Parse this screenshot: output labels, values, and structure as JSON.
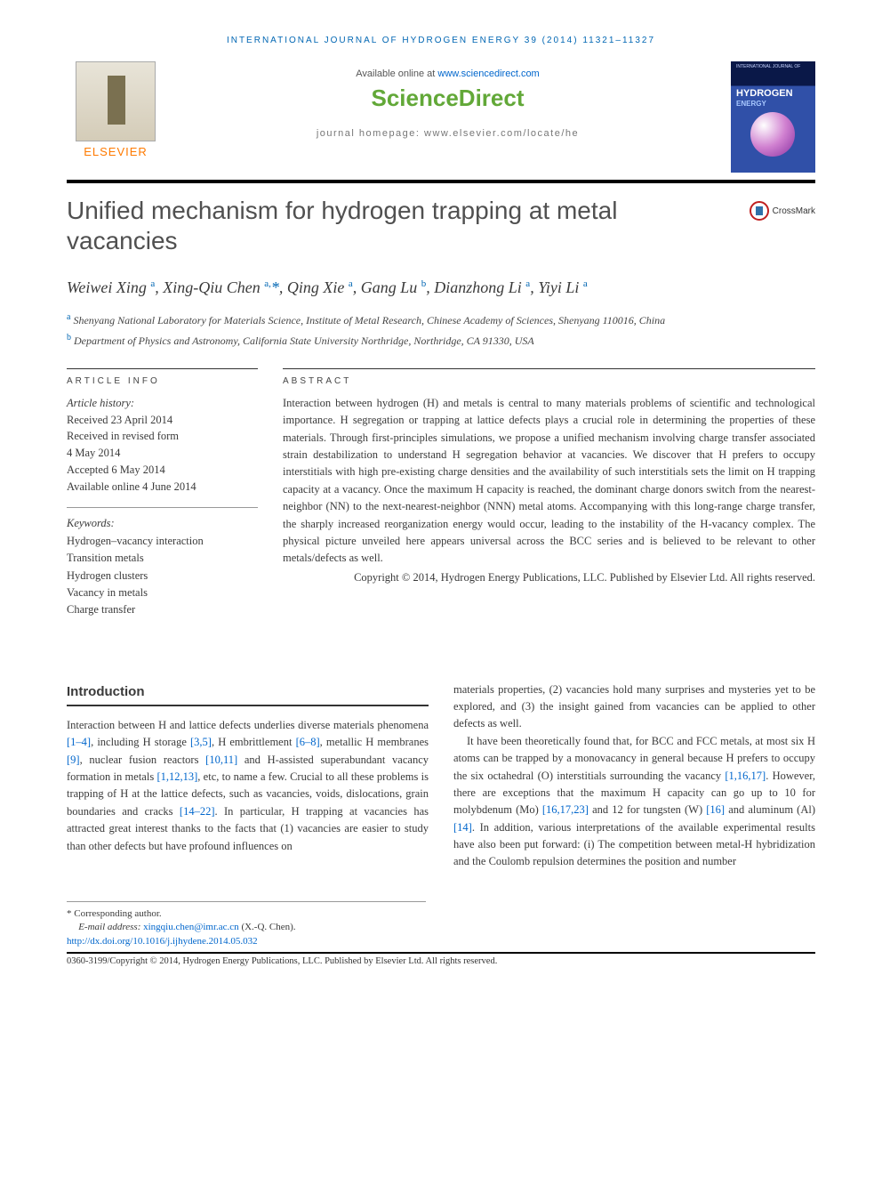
{
  "journal_header": "INTERNATIONAL JOURNAL OF HYDROGEN ENERGY 39 (2014) 11321–11327",
  "available_text": "Available online at ",
  "available_link": "www.sciencedirect.com",
  "scidirect": "ScienceDirect",
  "journal_homepage": "journal homepage: www.elsevier.com/locate/he",
  "elsevier": "ELSEVIER",
  "cover": {
    "top": "INTERNATIONAL JOURNAL OF",
    "title": "HYDROGEN",
    "sub": "ENERGY"
  },
  "crossmark": "CrossMark",
  "title": "Unified mechanism for hydrogen trapping at metal vacancies",
  "authors_html": "Weiwei Xing <sup>a</sup>, Xing-Qiu Chen <sup>a,</sup><span class='corr'>*</span>, Qing Xie <sup>a</sup>, Gang Lu <sup>b</sup>, Dianzhong Li <sup>a</sup>, Yiyi Li <sup>a</sup>",
  "affil_a": "Shenyang National Laboratory for Materials Science, Institute of Metal Research, Chinese Academy of Sciences, Shenyang 110016, China",
  "affil_b": "Department of Physics and Astronomy, California State University Northridge, Northridge, CA 91330, USA",
  "article_info_label": "ARTICLE INFO",
  "abstract_label": "ABSTRACT",
  "history": {
    "label": "Article history:",
    "received": "Received 23 April 2014",
    "revised1": "Received in revised form",
    "revised2": "4 May 2014",
    "accepted": "Accepted 6 May 2014",
    "online": "Available online 4 June 2014"
  },
  "kw_label": "Keywords:",
  "keywords": [
    "Hydrogen–vacancy interaction",
    "Transition metals",
    "Hydrogen clusters",
    "Vacancy in metals",
    "Charge transfer"
  ],
  "abstract": "Interaction between hydrogen (H) and metals is central to many materials problems of scientific and technological importance. H segregation or trapping at lattice defects plays a crucial role in determining the properties of these materials. Through first-principles simulations, we propose a unified mechanism involving charge transfer associated strain destabilization to understand H segregation behavior at vacancies. We discover that H prefers to occupy interstitials with high pre-existing charge densities and the availability of such interstitials sets the limit on H trapping capacity at a vacancy. Once the maximum H capacity is reached, the dominant charge donors switch from the nearest-neighbor (NN) to the next-nearest-neighbor (NNN) metal atoms. Accompanying with this long-range charge transfer, the sharply increased reorganization energy would occur, leading to the instability of the H-vacancy complex. The physical picture unveiled here appears universal across the BCC series and is believed to be relevant to other metals/defects as well.",
  "copyright": "Copyright © 2014, Hydrogen Energy Publications, LLC. Published by Elsevier Ltd. All rights reserved.",
  "intro_head": "Introduction",
  "intro_p1_pre": "Interaction between H and lattice defects underlies diverse materials phenomena ",
  "r1": "[1–4]",
  "intro_p1_a": ", including H storage ",
  "r2": "[3,5]",
  "intro_p1_b": ", H embrittlement ",
  "r3": "[6–8]",
  "intro_p1_c": ", metallic H membranes ",
  "r4": "[9]",
  "intro_p1_d": ", nuclear fusion reactors ",
  "r5": "[10,11]",
  "intro_p1_e": " and H-assisted superabundant vacancy formation in metals ",
  "r6": "[1,12,13]",
  "intro_p1_f": ", etc, to name a few. Crucial to all these problems is trapping of H at the lattice defects, such as vacancies, voids, dislocations, grain boundaries and cracks ",
  "r7": "[14–22]",
  "intro_p1_g": ". In particular, H trapping at vacancies has attracted great interest thanks to the facts that (1) vacancies are easier to study than other defects but have profound influences on",
  "col2_p1": "materials properties, (2) vacancies hold many surprises and mysteries yet to be explored, and (3) the insight gained from vacancies can be applied to other defects as well.",
  "col2_p2_a": "It have been theoretically found that, for BCC and FCC metals, at most six H atoms can be trapped by a monovacancy in general because H prefers to occupy the six octahedral (O) interstitials surrounding the vacancy ",
  "r8": "[1,16,17]",
  "col2_p2_b": ". However, there are exceptions that the maximum H capacity can go up to 10 for molybdenum (Mo) ",
  "r9": "[16,17,23]",
  "col2_p2_c": " and 12 for tungsten (W) ",
  "r10": "[16]",
  "col2_p2_d": " and aluminum (Al) ",
  "r11": "[14]",
  "col2_p2_e": ". In addition, various interpretations of the available experimental results have also been put forward: (i) The competition between metal-H hybridization and the Coulomb repulsion determines the position and number",
  "footnote_corr": "* Corresponding author.",
  "footnote_email_label": "E-mail address: ",
  "footnote_email": "xingqiu.chen@imr.ac.cn",
  "footnote_email_who": " (X.-Q. Chen).",
  "doi": "http://dx.doi.org/10.1016/j.ijhydene.2014.05.032",
  "issn": "0360-3199/Copyright © 2014, Hydrogen Energy Publications, LLC. Published by Elsevier Ltd. All rights reserved.",
  "colors": {
    "link": "#0066cc",
    "journal_blue": "#0066b3",
    "scidirect_green": "#62a838",
    "elsevier_orange": "#ff7a00"
  }
}
